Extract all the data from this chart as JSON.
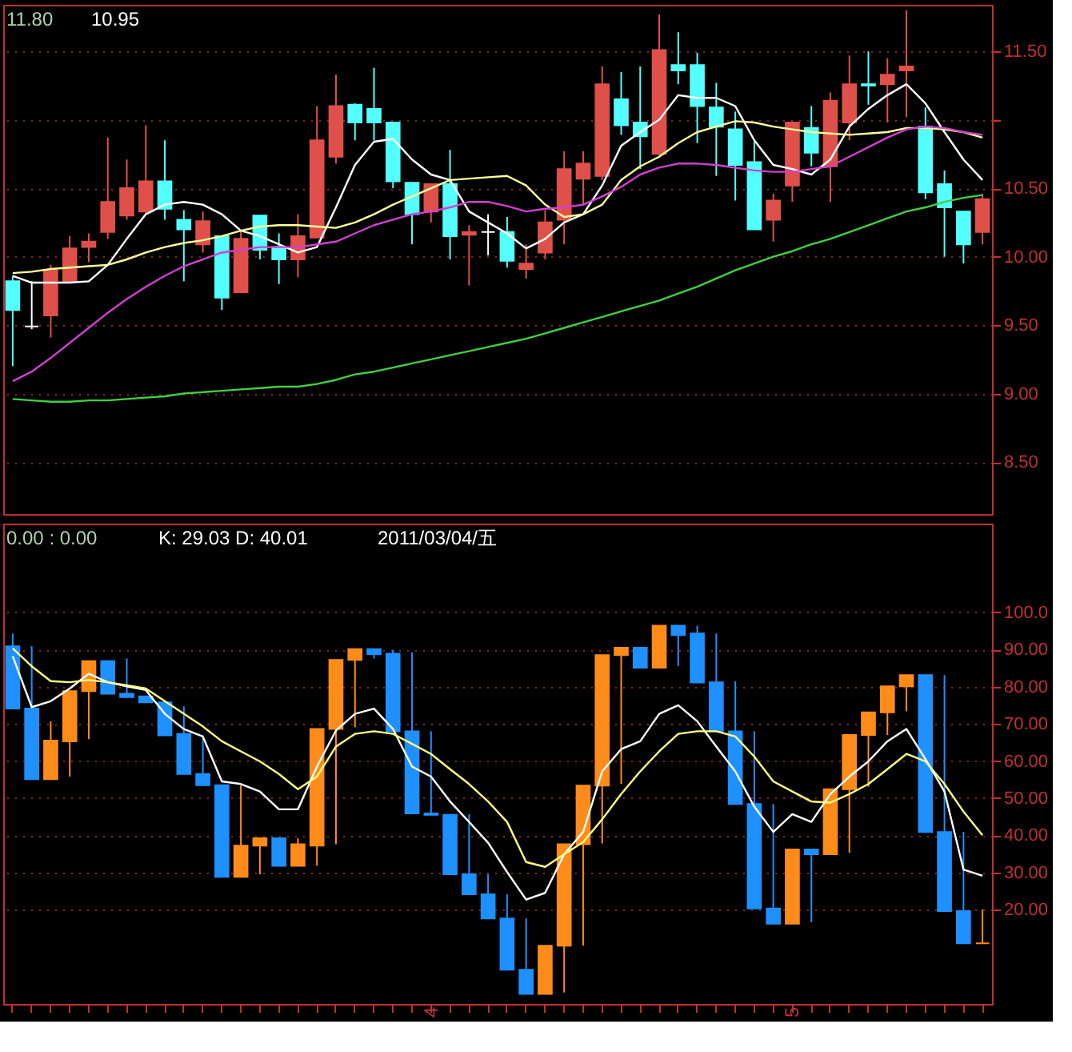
{
  "chart_data": [
    {
      "type": "candlestick",
      "categories": [
        null,
        null,
        null,
        null,
        null,
        null,
        null,
        null,
        null,
        null,
        null,
        null,
        null,
        null,
        null,
        null,
        null,
        null,
        null,
        null,
        null,
        null,
        null,
        null,
        null,
        null,
        null,
        null,
        null,
        null,
        null,
        null,
        null,
        null,
        null,
        null,
        null,
        null,
        null,
        null,
        null,
        null,
        null,
        null,
        null,
        null,
        null,
        null,
        null,
        null,
        null,
        null
      ],
      "ohlc": [
        [
          9.82,
          9.86,
          9.2,
          9.61
        ],
        [
          9.49,
          9.82,
          9.47,
          9.49
        ],
        [
          9.57,
          9.94,
          9.41,
          9.9
        ],
        [
          9.82,
          10.15,
          9.82,
          10.06
        ],
        [
          10.07,
          10.17,
          9.96,
          10.11
        ],
        [
          10.18,
          10.87,
          10.13,
          10.4
        ],
        [
          10.3,
          10.71,
          10.27,
          10.5
        ],
        [
          10.33,
          10.96,
          10.31,
          10.55
        ],
        [
          10.55,
          10.85,
          10.27,
          10.35
        ],
        [
          10.27,
          10.34,
          9.82,
          10.2
        ],
        [
          10.09,
          10.33,
          10.03,
          10.26
        ],
        [
          10.15,
          10.15,
          9.61,
          9.7
        ],
        [
          9.74,
          10.19,
          9.74,
          10.13
        ],
        [
          10.3,
          10.3,
          9.98,
          10.05
        ],
        [
          10.07,
          10.17,
          9.8,
          9.98
        ],
        [
          9.98,
          10.31,
          9.85,
          10.15
        ],
        [
          10.14,
          11.1,
          10.14,
          10.85
        ],
        [
          10.73,
          11.33,
          10.68,
          11.1
        ],
        [
          11.11,
          11.12,
          10.85,
          10.98
        ],
        [
          11.08,
          11.38,
          10.85,
          10.98
        ],
        [
          10.98,
          10.98,
          10.5,
          10.55
        ],
        [
          10.54,
          10.54,
          10.09,
          10.31
        ],
        [
          10.33,
          10.53,
          10.25,
          10.53
        ],
        [
          10.53,
          10.78,
          9.98,
          10.15
        ],
        [
          10.16,
          10.23,
          9.79,
          10.18
        ],
        [
          10.18,
          10.31,
          10.01,
          10.18
        ],
        [
          10.18,
          10.29,
          9.92,
          9.97
        ],
        [
          9.91,
          10.09,
          9.84,
          9.95
        ],
        [
          10.03,
          10.34,
          9.98,
          10.25
        ],
        [
          10.27,
          10.77,
          10.09,
          10.64
        ],
        [
          10.57,
          10.77,
          10.38,
          10.68
        ],
        [
          10.59,
          11.39,
          10.56,
          11.26
        ],
        [
          11.15,
          11.35,
          10.89,
          10.96
        ],
        [
          10.98,
          11.39,
          10.64,
          10.88
        ],
        [
          10.75,
          11.77,
          10.74,
          11.51
        ],
        [
          11.4,
          11.64,
          11.26,
          11.36
        ],
        [
          11.4,
          11.49,
          10.83,
          11.1
        ],
        [
          11.09,
          11.27,
          10.59,
          10.95
        ],
        [
          10.93,
          11.06,
          10.41,
          10.67
        ],
        [
          10.69,
          10.84,
          10.2,
          10.2
        ],
        [
          10.27,
          10.46,
          10.11,
          10.41
        ],
        [
          10.52,
          10.98,
          10.4,
          10.98
        ],
        [
          10.94,
          11.1,
          10.66,
          10.76
        ],
        [
          10.66,
          11.2,
          10.4,
          11.14
        ],
        [
          10.98,
          11.47,
          10.85,
          11.26
        ],
        [
          11.26,
          11.5,
          11.11,
          11.25
        ],
        [
          11.26,
          11.45,
          10.98,
          11.33
        ],
        [
          11.36,
          11.8,
          11.02,
          11.39
        ],
        [
          10.95,
          11.09,
          10.42,
          10.47
        ],
        [
          10.53,
          10.63,
          10.0,
          10.36
        ],
        [
          10.33,
          10.33,
          9.95,
          10.09
        ],
        [
          10.18,
          10.46,
          10.09,
          10.42
        ]
      ],
      "colors": [
        "#54ffff",
        "#ffffff",
        "#e0504a",
        "#e0504a",
        "#e0504a",
        "#e0504a",
        "#e0504a",
        "#e0504a",
        "#54ffff",
        "#54ffff",
        "#e0504a",
        "#54ffff",
        "#e0504a",
        "#54ffff",
        "#54ffff",
        "#e0504a",
        "#e0504a",
        "#e0504a",
        "#54ffff",
        "#54ffff",
        "#54ffff",
        "#54ffff",
        "#e0504a",
        "#54ffff",
        "#e0504a",
        "#ffffff",
        "#54ffff",
        "#e0504a",
        "#e0504a",
        "#e0504a",
        "#e0504a",
        "#e0504a",
        "#54ffff",
        "#54ffff",
        "#e0504a",
        "#54ffff",
        "#54ffff",
        "#54ffff",
        "#54ffff",
        "#54ffff",
        "#e0504a",
        "#e0504a",
        "#54ffff",
        "#e0504a",
        "#e0504a",
        "#54ffff",
        "#e0504a",
        "#e0504a",
        "#54ffff",
        "#54ffff",
        "#54ffff",
        "#e0504a"
      ],
      "series": [
        {
          "type": "line",
          "color": "#ffffff",
          "values": [
            9.86,
            9.81,
            9.81,
            9.81,
            9.82,
            9.94,
            10.13,
            10.31,
            10.38,
            10.4,
            10.38,
            10.31,
            10.19,
            10.15,
            10.09,
            10.03,
            10.07,
            10.36,
            10.67,
            10.84,
            10.86,
            10.71,
            10.6,
            10.56,
            10.33,
            10.25,
            10.17,
            10.06,
            10.13,
            10.25,
            10.31,
            10.52,
            10.81,
            10.91,
            11.0,
            11.18,
            11.16,
            11.16,
            11.1,
            10.85,
            10.67,
            10.64,
            10.6,
            10.71,
            10.95,
            11.08,
            11.18,
            11.26,
            11.12,
            10.91,
            10.71,
            10.56
          ]
        },
        {
          "type": "line",
          "color": "#ffff99",
          "values": [
            9.88,
            9.89,
            9.91,
            9.92,
            9.93,
            9.94,
            9.98,
            10.03,
            10.07,
            10.1,
            10.12,
            10.15,
            10.19,
            10.22,
            10.23,
            10.23,
            10.22,
            10.21,
            10.25,
            10.31,
            10.38,
            10.44,
            10.5,
            10.56,
            10.57,
            10.58,
            10.59,
            10.52,
            10.38,
            10.29,
            10.31,
            10.38,
            10.56,
            10.66,
            10.73,
            10.83,
            10.91,
            10.95,
            10.99,
            10.98,
            10.95,
            10.93,
            10.91,
            10.9,
            10.89,
            10.9,
            10.91,
            10.94,
            10.94,
            10.93,
            10.91,
            10.87
          ]
        },
        {
          "type": "line",
          "color": "#d040d0",
          "values": [
            9.09,
            9.16,
            9.26,
            9.37,
            9.48,
            9.59,
            9.69,
            9.78,
            9.86,
            9.93,
            9.98,
            10.03,
            10.05,
            10.07,
            10.07,
            10.07,
            10.09,
            10.11,
            10.17,
            10.23,
            10.27,
            10.31,
            10.33,
            10.36,
            10.4,
            10.4,
            10.37,
            10.33,
            10.35,
            10.36,
            10.38,
            10.44,
            10.51,
            10.6,
            10.65,
            10.68,
            10.68,
            10.67,
            10.65,
            10.63,
            10.62,
            10.62,
            10.64,
            10.66,
            10.73,
            10.8,
            10.87,
            10.93,
            10.95,
            10.94,
            10.91,
            10.89
          ]
        },
        {
          "type": "line",
          "color": "#40d040",
          "values": [
            8.96,
            8.95,
            8.94,
            8.94,
            8.95,
            8.95,
            8.96,
            8.97,
            8.98,
            9.0,
            9.01,
            9.02,
            9.03,
            9.04,
            9.05,
            9.05,
            9.07,
            9.1,
            9.14,
            9.16,
            9.19,
            9.22,
            9.25,
            9.28,
            9.31,
            9.34,
            9.37,
            9.4,
            9.44,
            9.48,
            9.52,
            9.56,
            9.6,
            9.64,
            9.68,
            9.73,
            9.78,
            9.84,
            9.9,
            9.95,
            10.0,
            10.04,
            10.09,
            10.13,
            10.18,
            10.23,
            10.28,
            10.33,
            10.36,
            10.4,
            10.43,
            10.45
          ]
        }
      ],
      "ylim": [
        8.12,
        11.84
      ],
      "yticks": [
        {
          "value": 8.5,
          "label": "8.50"
        },
        {
          "value": 9.0,
          "label": "9.00"
        },
        {
          "value": 9.5,
          "label": "9.50"
        },
        {
          "value": 10.0,
          "label": "10.00"
        },
        {
          "value": 10.5,
          "label": "10.50"
        },
        {
          "value": 11.0,
          "label": null
        },
        {
          "value": 11.5,
          "label": "11.50"
        }
      ],
      "grid": "y",
      "tick_labels": "y",
      "annotations": [
        "11.80",
        "10.95"
      ]
    },
    {
      "type": "candlestick",
      "categories": [
        null,
        null,
        null,
        null,
        null,
        null,
        null,
        null,
        null,
        null,
        null,
        null,
        null,
        null,
        null,
        null,
        null,
        null,
        null,
        null,
        null,
        null,
        "4",
        null,
        null,
        null,
        null,
        null,
        null,
        null,
        null,
        null,
        null,
        null,
        null,
        null,
        null,
        null,
        null,
        null,
        null,
        "5",
        null,
        null,
        null,
        null,
        null,
        null,
        null,
        null,
        null,
        null
      ],
      "ohlc": [
        [
          90.9,
          94.3,
          74.1,
          74.1
        ],
        [
          74.1,
          90.9,
          55.1,
          55.1
        ],
        [
          55.1,
          70.7,
          55.1,
          65.5
        ],
        [
          65.3,
          78.8,
          55.8,
          78.8
        ],
        [
          78.8,
          86.9,
          65.9,
          86.9
        ],
        [
          86.9,
          86.9,
          78.1,
          78.1
        ],
        [
          78.1,
          87.6,
          77.2,
          77.2
        ],
        [
          77.4,
          77.4,
          75.8,
          75.8
        ],
        [
          75.8,
          76.1,
          66.9,
          66.9
        ],
        [
          67.3,
          74.7,
          56.5,
          56.5
        ],
        [
          56.5,
          66.9,
          53.5,
          53.5
        ],
        [
          53.5,
          53.5,
          28.8,
          28.8
        ],
        [
          28.8,
          53.5,
          28.8,
          37.2
        ],
        [
          37.2,
          39.2,
          29.5,
          39.2
        ],
        [
          39.2,
          39.2,
          31.8,
          31.8
        ],
        [
          31.8,
          39.2,
          31.8,
          37.6
        ],
        [
          37.2,
          68.6,
          31.8,
          68.6
        ],
        [
          68.6,
          87.2,
          37.6,
          87.2
        ],
        [
          87.2,
          90.1,
          69.1,
          90.1
        ],
        [
          90.1,
          90.1,
          87.6,
          88.8
        ],
        [
          88.9,
          89.9,
          68.0,
          68.0
        ],
        [
          68.0,
          89.2,
          45.9,
          45.9
        ],
        [
          45.9,
          68.0,
          45.5,
          45.5
        ],
        [
          45.5,
          45.5,
          29.5,
          29.5
        ],
        [
          29.5,
          45.7,
          24.1,
          24.1
        ],
        [
          24.1,
          29.5,
          17.6,
          17.6
        ],
        [
          17.6,
          24.1,
          3.8,
          3.8
        ],
        [
          3.8,
          17.6,
          -2.7,
          -2.7
        ],
        [
          -2.7,
          10.3,
          -2.7,
          10.3
        ],
        [
          10.3,
          37.6,
          -2.3,
          37.6
        ],
        [
          37.6,
          53.4,
          10.3,
          53.4
        ],
        [
          53.4,
          88.5,
          37.8,
          88.5
        ],
        [
          88.5,
          90.5,
          53.8,
          90.5
        ],
        [
          90.5,
          90.5,
          85.1,
          85.1
        ],
        [
          85.1,
          96.4,
          85.1,
          96.4
        ],
        [
          96.4,
          96.4,
          85.5,
          93.9
        ],
        [
          94.3,
          96.4,
          81.1,
          81.1
        ],
        [
          81.2,
          94.3,
          68.0,
          68.0
        ],
        [
          68.0,
          81.5,
          48.4,
          48.4
        ],
        [
          48.4,
          68.0,
          20.3,
          20.3
        ],
        [
          20.3,
          48.4,
          16.2,
          16.2
        ],
        [
          16.2,
          36.2,
          16.2,
          36.2
        ],
        [
          36.2,
          36.2,
          16.6,
          34.9
        ],
        [
          34.9,
          52.4,
          34.9,
          52.4
        ],
        [
          52.4,
          67.0,
          35.3,
          67.0
        ],
        [
          67.0,
          73.1,
          53.1,
          73.1
        ],
        [
          73.1,
          80.1,
          67.0,
          80.1
        ],
        [
          80.1,
          83.1,
          73.4,
          83.1
        ],
        [
          83.1,
          83.1,
          40.9,
          40.9
        ],
        [
          40.9,
          83.1,
          19.6,
          19.6
        ],
        [
          19.6,
          40.9,
          10.9,
          10.9
        ],
        [
          10.9,
          20.0,
          10.9,
          10.9
        ]
      ],
      "colors": [
        "#1e90ff",
        "#1e90ff",
        "#ff8c1a",
        "#ff8c1a",
        "#ff8c1a",
        "#1e90ff",
        "#1e90ff",
        "#1e90ff",
        "#1e90ff",
        "#1e90ff",
        "#1e90ff",
        "#1e90ff",
        "#ff8c1a",
        "#ff8c1a",
        "#1e90ff",
        "#ff8c1a",
        "#ff8c1a",
        "#ff8c1a",
        "#ff8c1a",
        "#1e90ff",
        "#1e90ff",
        "#1e90ff",
        "#1e90ff",
        "#1e90ff",
        "#1e90ff",
        "#1e90ff",
        "#1e90ff",
        "#1e90ff",
        "#ff8c1a",
        "#ff8c1a",
        "#ff8c1a",
        "#ff8c1a",
        "#ff8c1a",
        "#1e90ff",
        "#ff8c1a",
        "#1e90ff",
        "#1e90ff",
        "#1e90ff",
        "#1e90ff",
        "#1e90ff",
        "#1e90ff",
        "#ff8c1a",
        "#1e90ff",
        "#ff8c1a",
        "#ff8c1a",
        "#ff8c1a",
        "#ff8c1a",
        "#ff8c1a",
        "#1e90ff",
        "#1e90ff",
        "#1e90ff",
        "#ff8c1a"
      ],
      "series": [
        {
          "type": "line",
          "color": "#ffffff",
          "values": [
            88.2,
            74.5,
            76.1,
            79.5,
            83.5,
            81.2,
            80.1,
            79.1,
            72.7,
            68.6,
            66.6,
            54.5,
            53.8,
            51.8,
            47.0,
            47.0,
            58.5,
            68.2,
            72.7,
            74.1,
            68.6,
            58.5,
            55.8,
            49.1,
            43.6,
            38.0,
            30.1,
            22.7,
            24.5,
            34.9,
            40.9,
            57.2,
            63.2,
            65.3,
            72.7,
            75.0,
            70.7,
            63.9,
            57.2,
            47.7,
            40.9,
            45.7,
            43.6,
            51.1,
            55.8,
            59.9,
            65.3,
            68.6,
            60.5,
            51.8,
            30.8,
            29.1
          ]
        },
        {
          "type": "line",
          "color": "#ffff80",
          "values": [
            90.3,
            85.5,
            81.5,
            81.2,
            81.8,
            81.2,
            80.4,
            79.5,
            76.1,
            72.7,
            69.3,
            65.3,
            62.6,
            59.9,
            56.5,
            52.4,
            55.8,
            63.9,
            67.3,
            68.0,
            67.3,
            64.6,
            61.9,
            57.8,
            53.8,
            49.1,
            43.6,
            32.8,
            31.5,
            34.9,
            38.2,
            44.3,
            51.1,
            57.2,
            62.6,
            67.3,
            68.0,
            68.0,
            66.6,
            61.2,
            54.5,
            51.8,
            49.1,
            48.8,
            51.1,
            53.8,
            57.8,
            61.9,
            59.9,
            53.8,
            46.4,
            40.0
          ]
        }
      ],
      "ylim": [
        -5.4,
        123.9
      ],
      "yticks": [
        {
          "value": 20,
          "label": "20.00"
        },
        {
          "value": 30,
          "label": "30.00"
        },
        {
          "value": 40,
          "label": "40.00"
        },
        {
          "value": 50,
          "label": "50.00"
        },
        {
          "value": 60,
          "label": "60.00"
        },
        {
          "value": 70,
          "label": "70.00"
        },
        {
          "value": 80,
          "label": "80.00"
        },
        {
          "value": 90,
          "label": "90.00"
        },
        {
          "value": 100,
          "label": "100.0"
        }
      ],
      "grid": "y",
      "annotations": [
        "0.00 : 0.00",
        "K: 29.03 D: 40.01",
        "2011/03/04/五"
      ]
    }
  ]
}
